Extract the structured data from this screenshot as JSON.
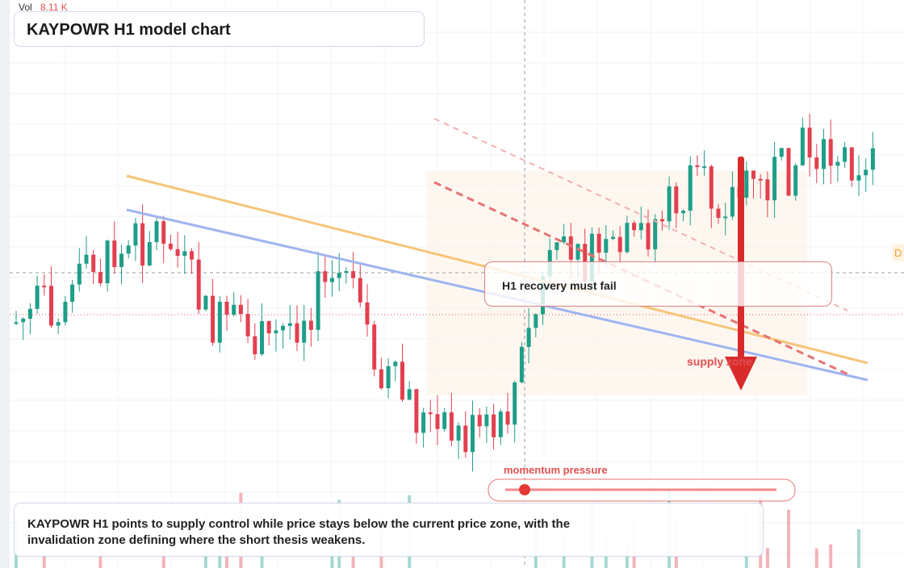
{
  "header": {
    "vol_label": "Vol",
    "vol_value": "8.11 K",
    "title": "KAYPOWR H1 model chart"
  },
  "annotations": {
    "callout": "H1 recovery must fail",
    "zone": "supply zone",
    "momentum": "momentum pressure",
    "edge_tag": "D"
  },
  "description": {
    "lines": [
      "KAYPOWR H1 points to supply control while price stays below the current price zone, with the",
      "invalidation zone defining where the short thesis weakens."
    ]
  }
}
